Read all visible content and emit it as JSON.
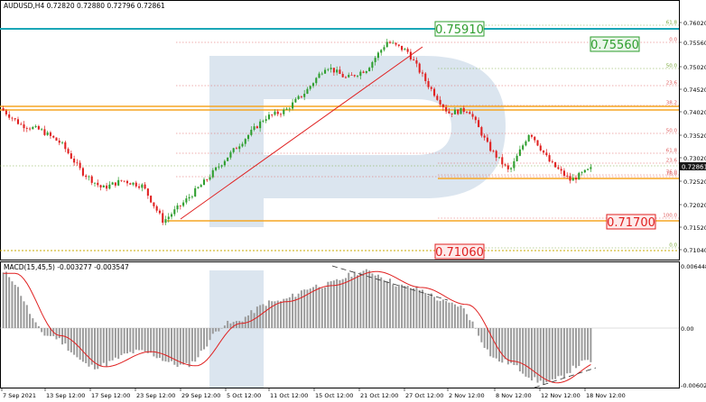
{
  "header": {
    "symbol_line": "AUDUSD,H4  0.72820  0.72880  0.72796  0.72861"
  },
  "macd_header": "MACD(15,45,5)  -0.003277  -0.003547",
  "price_axis": {
    "labels": [
      "0.76020",
      "0.75560",
      "0.75020",
      "0.74520",
      "0.74020",
      "0.73520",
      "0.73020",
      "0.72520",
      "0.72020",
      "0.71520",
      "0.71040"
    ],
    "current": "0.72861"
  },
  "macd_axis": {
    "labels": [
      "0.006448",
      "0.00",
      "-0.006021"
    ]
  },
  "time_axis": {
    "labels": [
      "7 Sep 2021",
      "13 Sep 12:00",
      "17 Sep 12:00",
      "23 Sep 12:00",
      "29 Sep 12:00",
      "5 Oct 12:00",
      "11 Oct 12:00",
      "15 Oct 12:00",
      "21 Oct 12:00",
      "27 Oct 12:00",
      "2 Nov 12:00",
      "8 Nov 12:00",
      "12 Nov 12:00",
      "18 Nov 12:00"
    ]
  },
  "levels": {
    "callout_top": "0.75910",
    "callout_second": "0.75560",
    "callout_mid": "0.71700",
    "callout_low": "0.71060"
  },
  "fib_upper": [
    "61.8",
    "0.0",
    "50.0",
    "23.6",
    "38.2",
    "50.0",
    "61.8",
    "76.0",
    "100.0",
    "0.0"
  ],
  "fib_lower": [
    "23.6",
    "76.0",
    "100.0",
    "0.0"
  ],
  "colors": {
    "bull": "#2e9e2e",
    "bear": "#e02020",
    "resistance": "#f5a623",
    "top_line": "#1aa6b7",
    "fib": "#e06060",
    "fib_green": "#7aa83a",
    "macd_hist": "#9a9a9a",
    "macd_signal": "#e02020"
  },
  "chart_data": {
    "type": "candlestick",
    "symbol": "AUDUSD",
    "timeframe": "H4",
    "x_range": [
      "7 Sep 2021",
      "18 Nov 12:00"
    ],
    "y_range": [
      0.7098,
      0.7606
    ],
    "key_levels": [
      0.7591,
      0.7556,
      0.717,
      0.7106
    ],
    "close_path": [
      {
        "x": "7 Sep 2021",
        "y": 0.7415
      },
      {
        "x": "11 Sep",
        "y": 0.738
      },
      {
        "x": "13 Sep 12:00",
        "y": 0.7368
      },
      {
        "x": "15 Sep",
        "y": 0.734
      },
      {
        "x": "17 Sep 12:00",
        "y": 0.728
      },
      {
        "x": "21 Sep",
        "y": 0.7245
      },
      {
        "x": "23 Sep 12:00",
        "y": 0.7262
      },
      {
        "x": "27 Sep",
        "y": 0.725
      },
      {
        "x": "29 Sep 12:00",
        "y": 0.7175
      },
      {
        "x": "1 Oct",
        "y": 0.7215
      },
      {
        "x": "5 Oct 12:00",
        "y": 0.7258
      },
      {
        "x": "7 Oct",
        "y": 0.7305
      },
      {
        "x": "11 Oct 12:00",
        "y": 0.735
      },
      {
        "x": "13 Oct",
        "y": 0.7395
      },
      {
        "x": "15 Oct 12:00",
        "y": 0.741
      },
      {
        "x": "17 Oct",
        "y": 0.745
      },
      {
        "x": "19 Oct",
        "y": 0.7505
      },
      {
        "x": "21 Oct 12:00",
        "y": 0.7478
      },
      {
        "x": "25 Oct",
        "y": 0.7498
      },
      {
        "x": "27 Oct 12:00",
        "y": 0.7556
      },
      {
        "x": "29 Oct",
        "y": 0.7535
      },
      {
        "x": "2 Nov 12:00",
        "y": 0.7465
      },
      {
        "x": "4 Nov",
        "y": 0.7405
      },
      {
        "x": "8 Nov 12:00",
        "y": 0.7412
      },
      {
        "x": "10 Nov",
        "y": 0.7332
      },
      {
        "x": "12 Nov 12:00",
        "y": 0.728
      },
      {
        "x": "14 Nov",
        "y": 0.7365
      },
      {
        "x": "16 Nov",
        "y": 0.73
      },
      {
        "x": "17 Nov",
        "y": 0.7262
      },
      {
        "x": "18 Nov 12:00",
        "y": 0.7286
      }
    ],
    "macd_path": [
      {
        "x": "7 Sep 2021",
        "y": 0.0058
      },
      {
        "x": "13 Sep 12:00",
        "y": -0.0008
      },
      {
        "x": "17 Sep 12:00",
        "y": -0.0041
      },
      {
        "x": "23 Sep 12:00",
        "y": -0.0025
      },
      {
        "x": "29 Sep 12:00",
        "y": -0.004
      },
      {
        "x": "5 Oct 12:00",
        "y": 0.0005
      },
      {
        "x": "11 Oct 12:00",
        "y": 0.0028
      },
      {
        "x": "15 Oct 12:00",
        "y": 0.0045
      },
      {
        "x": "21 Oct 12:00",
        "y": 0.006
      },
      {
        "x": "27 Oct 12:00",
        "y": 0.0043
      },
      {
        "x": "2 Nov 12:00",
        "y": 0.0025
      },
      {
        "x": "8 Nov 12:00",
        "y": -0.0035
      },
      {
        "x": "12 Nov 12:00",
        "y": -0.0058
      },
      {
        "x": "18 Nov 12:00",
        "y": -0.0035
      }
    ]
  }
}
